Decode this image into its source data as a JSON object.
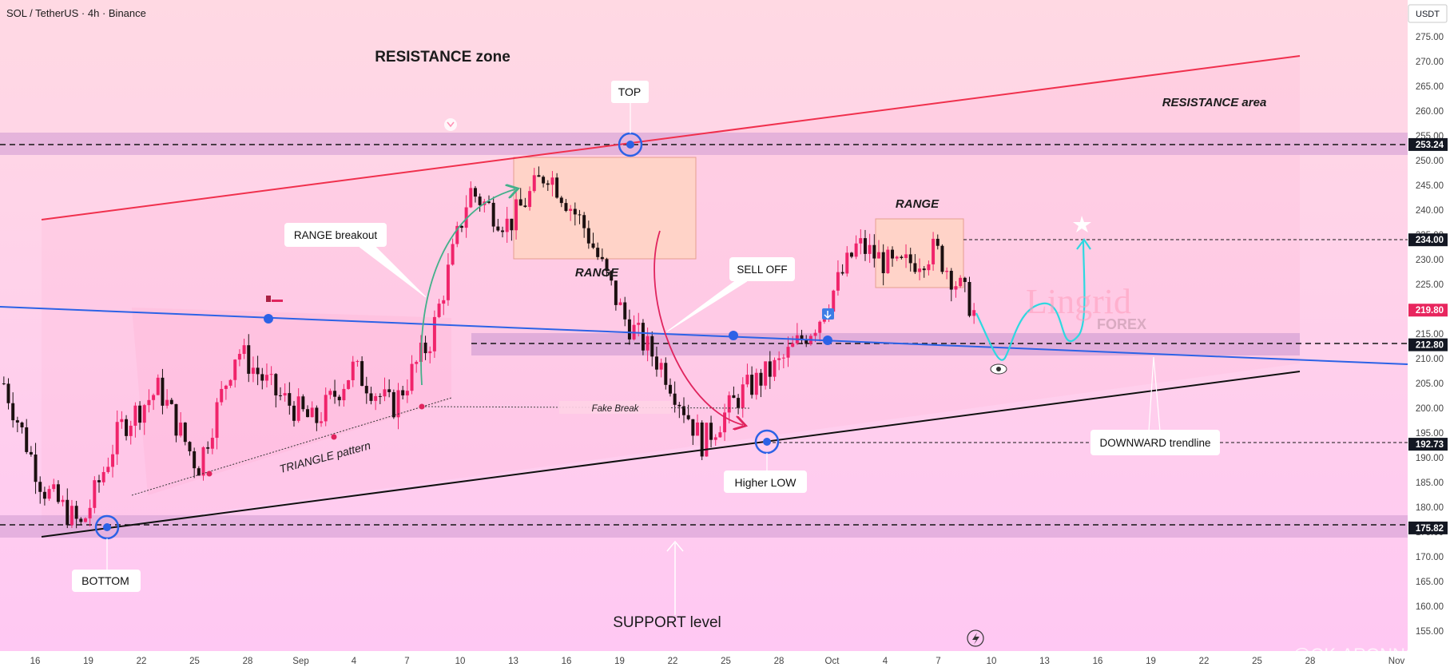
{
  "header": {
    "symbol": "SOL / TetherUS · 4h · Binance",
    "currency": "USDT"
  },
  "colors": {
    "bg_top": "#ffd9e2",
    "bg_bottom": "#ffc6f2",
    "band": "#d9a5d8",
    "resistance_line": "#f0304d",
    "support_line": "#101010",
    "downtrend_line": "#2c62e6",
    "candle_up": "#f0246b",
    "candle_down": "#1b1010",
    "projection": "#2ed8e0",
    "price_badge_dark": "#131722",
    "price_badge_current": "#e8265e"
  },
  "price_axis": {
    "ticks": [
      "275.00",
      "270.00",
      "265.00",
      "260.00",
      "255.00",
      "250.00",
      "245.00",
      "240.00",
      "235.00",
      "230.00",
      "225.00",
      "220.00",
      "215.00",
      "210.00",
      "205.00",
      "200.00",
      "195.00",
      "190.00",
      "185.00",
      "180.00",
      "175.00",
      "170.00",
      "165.00",
      "160.00",
      "155.00"
    ],
    "badges": [
      {
        "value": "253.24",
        "style": "dark"
      },
      {
        "value": "234.00",
        "style": "dark"
      },
      {
        "value": "219.80",
        "style": "current"
      },
      {
        "value": "212.80",
        "style": "dark"
      },
      {
        "value": "192.73",
        "style": "dark"
      },
      {
        "value": "175.82",
        "style": "dark"
      }
    ]
  },
  "time_axis": {
    "ticks": [
      "16",
      "19",
      "22",
      "25",
      "28",
      "Sep",
      "4",
      "7",
      "10",
      "13",
      "16",
      "19",
      "22",
      "25",
      "28",
      "Oct",
      "4",
      "7",
      "10",
      "13",
      "16",
      "19",
      "22",
      "25",
      "28",
      "Nov"
    ]
  },
  "annotations": {
    "resistance_zone": "RESISTANCE zone",
    "resistance_area": "RESISTANCE area",
    "top": "TOP",
    "range_breakout": "RANGE breakout",
    "range1": "RANGE",
    "range2": "RANGE",
    "sell_off": "SELL OFF",
    "triangle": "TRIANGLE pattern",
    "fake_break": "Fake Break",
    "higher_low": "Higher LOW",
    "downward_trendline": "DOWNWARD trendline",
    "bottom": "BOTTOM",
    "support_level": "SUPPORT level",
    "watermark_main": "Lingrid",
    "watermark_sub": "FOREX",
    "credit": "@GK-ARONNO"
  },
  "chart_data": {
    "type": "candlestick",
    "title": "SOL / TetherUS · 4h · Binance",
    "ylabel": "USDT",
    "ylim": [
      153,
      278
    ],
    "x": [
      "16",
      "19",
      "22",
      "25",
      "28",
      "Sep",
      "4",
      "7",
      "10",
      "13",
      "16",
      "19",
      "22",
      "25",
      "28",
      "Oct",
      "4",
      "7",
      "10",
      "13",
      "16",
      "19",
      "22",
      "25",
      "28",
      "Nov"
    ],
    "levels": [
      253.24,
      234.0,
      212.8,
      192.73,
      175.82
    ],
    "current_price": 219.8,
    "close_path": [
      {
        "x": "16",
        "y": 205
      },
      {
        "x": "19",
        "y": 184
      },
      {
        "x": "20",
        "y": 176
      },
      {
        "x": "22",
        "y": 196
      },
      {
        "x": "25",
        "y": 204
      },
      {
        "x": "26",
        "y": 188
      },
      {
        "x": "28",
        "y": 212
      },
      {
        "x": "Sep",
        "y": 203
      },
      {
        "x": "3",
        "y": 197
      },
      {
        "x": "4",
        "y": 208
      },
      {
        "x": "7",
        "y": 200
      },
      {
        "x": "10",
        "y": 214
      },
      {
        "x": "13",
        "y": 244
      },
      {
        "x": "16",
        "y": 237
      },
      {
        "x": "19",
        "y": 248
      },
      {
        "x": "22",
        "y": 236
      },
      {
        "x": "23",
        "y": 218
      },
      {
        "x": "25",
        "y": 208
      },
      {
        "x": "26",
        "y": 193
      },
      {
        "x": "28",
        "y": 203
      },
      {
        "x": "30",
        "y": 209
      },
      {
        "x": "Oct",
        "y": 218
      },
      {
        "x": "3",
        "y": 233
      },
      {
        "x": "5",
        "y": 228
      },
      {
        "x": "7",
        "y": 232
      },
      {
        "x": "8",
        "y": 219.8
      }
    ],
    "projection": [
      219.8,
      209.5,
      220,
      215,
      234
    ]
  }
}
